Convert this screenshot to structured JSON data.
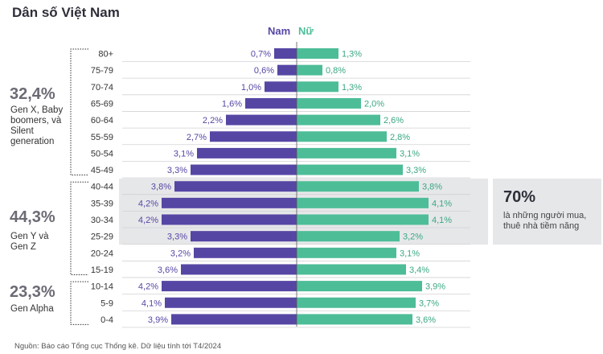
{
  "title": "Dân số Việt Nam",
  "legend": {
    "male": "Nam",
    "female": "Nữ"
  },
  "colors": {
    "male": "#5646a4",
    "female": "#4dbd98",
    "highlight": "#e6e7e9"
  },
  "groups": [
    {
      "pct": "32,4%",
      "label": "Gen X, Baby boomers, và Silent generation"
    },
    {
      "pct": "44,3%",
      "label": "Gen Y và Gen Z"
    },
    {
      "pct": "23,3%",
      "label": "Gen Alpha"
    }
  ],
  "callout": {
    "pct": "70%",
    "text": "là những người mua, thuê nhà tiềm năng"
  },
  "source": "Nguồn: Báo cáo Tổng cục Thống kê. Dữ liệu tính tới T4/2024",
  "chart_data": {
    "type": "bar",
    "orientation": "horizontal-population-pyramid",
    "categories": [
      "80+",
      "75-79",
      "70-74",
      "65-69",
      "60-64",
      "55-59",
      "50-54",
      "45-49",
      "40-44",
      "35-39",
      "30-34",
      "25-29",
      "20-24",
      "15-19",
      "10-14",
      "5-9",
      "0-4"
    ],
    "series": [
      {
        "name": "Nam",
        "values": [
          0.7,
          0.6,
          1.0,
          1.6,
          2.2,
          2.7,
          3.1,
          3.3,
          3.8,
          4.2,
          4.2,
          3.3,
          3.2,
          3.6,
          4.2,
          4.1,
          3.9
        ],
        "labels": [
          "0,7%",
          "0,6%",
          "1,0%",
          "1,6%",
          "2,2%",
          "2,7%",
          "3,1%",
          "3,3%",
          "3,8%",
          "4,2%",
          "4,2%",
          "3,3%",
          "3,2%",
          "3,6%",
          "4,2%",
          "4,1%",
          "3,9%"
        ]
      },
      {
        "name": "Nữ",
        "values": [
          1.3,
          0.8,
          1.3,
          2.0,
          2.6,
          2.8,
          3.1,
          3.3,
          3.8,
          4.1,
          4.1,
          3.2,
          3.1,
          3.4,
          3.9,
          3.7,
          3.6
        ],
        "labels": [
          "1,3%",
          "0,8%",
          "1,3%",
          "2,0%",
          "2,6%",
          "2,8%",
          "3,1%",
          "3,3%",
          "3,8%",
          "4,1%",
          "4,1%",
          "3,2%",
          "3,1%",
          "3,4%",
          "3,9%",
          "3,7%",
          "3,6%"
        ]
      }
    ],
    "grid": false,
    "legend_position": "top-center"
  }
}
